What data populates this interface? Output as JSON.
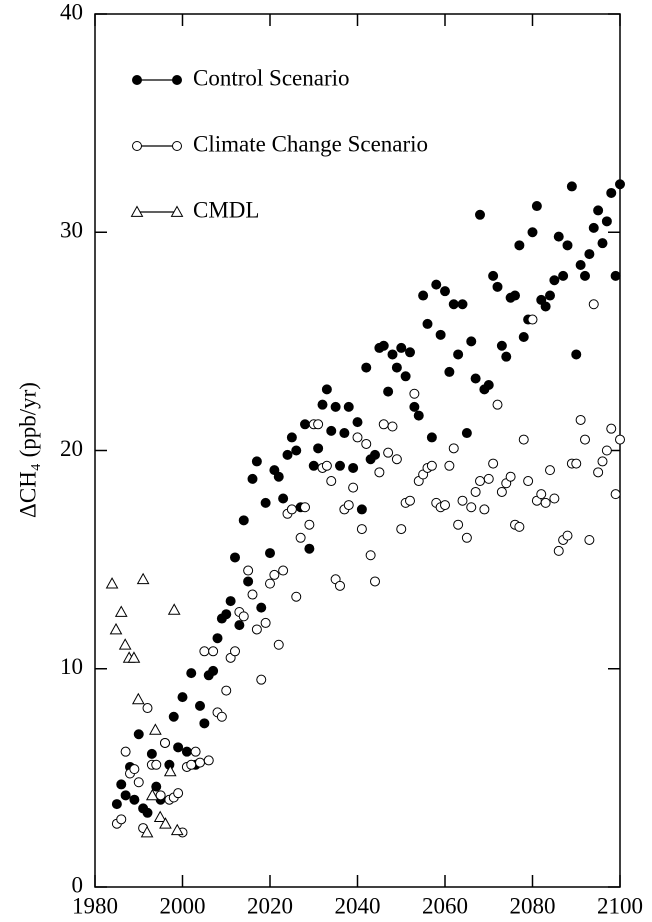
{
  "chart_data": {
    "type": "scatter",
    "y_label": "ΔCH₄ (ppb/yr)",
    "xlim": [
      1980,
      2100
    ],
    "xticks": [
      1980,
      2000,
      2020,
      2040,
      2060,
      2080,
      2100
    ],
    "ylim": [
      0,
      40
    ],
    "yticks": [
      0,
      10,
      20,
      30,
      40
    ],
    "legend": "upper left",
    "series": [
      {
        "name": "Control Scenario",
        "color": "#000000",
        "marker": "filled-circle",
        "x": [
          1985,
          1986,
          1987,
          1988,
          1989,
          1990,
          1991,
          1992,
          1993,
          1994,
          1995,
          1996,
          1997,
          1998,
          1999,
          2000,
          2001,
          2002,
          2003,
          2004,
          2005,
          2006,
          2007,
          2008,
          2009,
          2010,
          2011,
          2012,
          2013,
          2014,
          2015,
          2016,
          2017,
          2018,
          2019,
          2020,
          2021,
          2022,
          2023,
          2024,
          2025,
          2026,
          2027,
          2028,
          2029,
          2030,
          2031,
          2032,
          2033,
          2034,
          2035,
          2036,
          2037,
          2038,
          2039,
          2040,
          2041,
          2042,
          2043,
          2044,
          2045,
          2046,
          2047,
          2048,
          2049,
          2050,
          2051,
          2052,
          2053,
          2054,
          2055,
          2056,
          2057,
          2058,
          2059,
          2060,
          2061,
          2062,
          2063,
          2064,
          2065,
          2066,
          2067,
          2068,
          2069,
          2070,
          2071,
          2072,
          2073,
          2074,
          2075,
          2076,
          2077,
          2078,
          2079,
          2080,
          2081,
          2082,
          2083,
          2084,
          2085,
          2086,
          2087,
          2088,
          2089,
          2090,
          2091,
          2092,
          2093,
          2094,
          2095,
          2096,
          2097,
          2098,
          2099,
          2100
        ],
        "values": [
          3.8,
          4.7,
          4.2,
          5.5,
          4.0,
          7.0,
          3.6,
          3.4,
          6.1,
          4.6,
          4.0,
          6.6,
          5.6,
          7.8,
          6.4,
          8.7,
          6.2,
          9.8,
          5.6,
          8.3,
          7.5,
          9.7,
          9.9,
          11.4,
          12.3,
          12.5,
          13.1,
          15.1,
          12.0,
          16.8,
          14.0,
          18.7,
          19.5,
          12.8,
          17.6,
          15.3,
          19.1,
          18.8,
          17.8,
          19.8,
          20.6,
          20.0,
          17.4,
          21.2,
          15.5,
          19.3,
          20.1,
          22.1,
          22.8,
          20.9,
          22.0,
          19.3,
          20.8,
          22.0,
          19.2,
          21.3,
          17.3,
          23.8,
          19.6,
          19.8,
          24.7,
          24.8,
          22.7,
          24.4,
          23.8,
          24.7,
          23.4,
          24.5,
          22.0,
          21.6,
          27.1,
          25.8,
          20.6,
          27.6,
          25.3,
          27.3,
          23.6,
          26.7,
          24.4,
          26.7,
          20.8,
          25.0,
          23.3,
          30.8,
          22.8,
          23.0,
          28.0,
          27.5,
          24.8,
          24.3,
          27.0,
          27.1,
          29.4,
          25.2,
          26.0,
          30.0,
          31.2,
          26.9,
          26.6,
          27.1,
          27.8,
          29.8,
          28.0,
          29.4,
          32.1,
          24.4,
          28.5,
          28.0,
          29.0,
          30.2,
          31.0,
          29.5,
          30.5,
          31.8,
          28.0,
          32.2
        ]
      },
      {
        "name": "Climate Change Scenario",
        "color": "#000000",
        "marker": "open-circle",
        "x": [
          1985,
          1986,
          1987,
          1988,
          1989,
          1990,
          1991,
          1992,
          1993,
          1994,
          1995,
          1996,
          1997,
          1998,
          1999,
          2000,
          2001,
          2002,
          2003,
          2004,
          2005,
          2006,
          2007,
          2008,
          2009,
          2010,
          2011,
          2012,
          2013,
          2014,
          2015,
          2016,
          2017,
          2018,
          2019,
          2020,
          2021,
          2022,
          2023,
          2024,
          2025,
          2026,
          2027,
          2028,
          2029,
          2030,
          2031,
          2032,
          2033,
          2034,
          2035,
          2036,
          2037,
          2038,
          2039,
          2040,
          2041,
          2042,
          2043,
          2044,
          2045,
          2046,
          2047,
          2048,
          2049,
          2050,
          2051,
          2052,
          2053,
          2054,
          2055,
          2056,
          2057,
          2058,
          2059,
          2060,
          2061,
          2062,
          2063,
          2064,
          2065,
          2066,
          2067,
          2068,
          2069,
          2070,
          2071,
          2072,
          2073,
          2074,
          2075,
          2076,
          2077,
          2078,
          2079,
          2080,
          2081,
          2082,
          2083,
          2084,
          2085,
          2086,
          2087,
          2088,
          2089,
          2090,
          2091,
          2092,
          2093,
          2094,
          2095,
          2096,
          2097,
          2098,
          2099,
          2100
        ],
        "values": [
          2.9,
          3.1,
          6.2,
          5.2,
          5.4,
          4.8,
          2.7,
          8.2,
          5.6,
          5.6,
          4.2,
          6.6,
          4.0,
          4.1,
          4.3,
          2.5,
          5.5,
          5.6,
          6.2,
          5.7,
          10.8,
          5.8,
          10.8,
          8.0,
          7.8,
          9.0,
          10.5,
          10.8,
          12.6,
          12.4,
          14.5,
          13.4,
          11.8,
          9.5,
          12.1,
          13.9,
          14.3,
          11.1,
          14.5,
          17.1,
          17.3,
          13.3,
          16.0,
          17.4,
          16.6,
          21.2,
          21.2,
          19.2,
          19.3,
          18.6,
          14.1,
          13.8,
          17.3,
          17.5,
          18.3,
          20.6,
          16.4,
          20.3,
          15.2,
          14.0,
          19.0,
          21.2,
          19.9,
          21.1,
          19.6,
          16.4,
          17.6,
          17.7,
          22.6,
          18.6,
          18.9,
          19.2,
          19.3,
          17.6,
          17.4,
          17.5,
          19.3,
          20.1,
          16.6,
          17.7,
          16.0,
          17.4,
          18.1,
          18.6,
          17.3,
          18.7,
          19.4,
          22.1,
          18.1,
          18.5,
          18.8,
          16.6,
          16.5,
          20.5,
          18.6,
          26.0,
          17.7,
          18.0,
          17.6,
          19.1,
          17.8,
          15.4,
          15.9,
          16.1,
          19.4,
          19.4,
          21.4,
          20.5,
          15.9,
          26.7,
          19.0,
          19.5,
          20.0,
          21.0,
          18.0,
          20.5
        ]
      },
      {
        "name": "CMDL",
        "color": "#000000",
        "marker": "open-triangle",
        "x": [
          1983.9,
          1984.8,
          1986.0,
          1986.9,
          1987.8,
          1988.9,
          1989.9,
          1991.0,
          1991.9,
          1993.1,
          1993.8,
          1994.9,
          1996.1,
          1997.2,
          1998.1,
          1998.8
        ],
        "values": [
          13.9,
          11.8,
          12.6,
          11.1,
          10.5,
          10.5,
          8.6,
          14.1,
          2.5,
          4.2,
          7.2,
          3.2,
          2.9,
          5.3,
          12.7,
          2.6
        ]
      }
    ]
  }
}
